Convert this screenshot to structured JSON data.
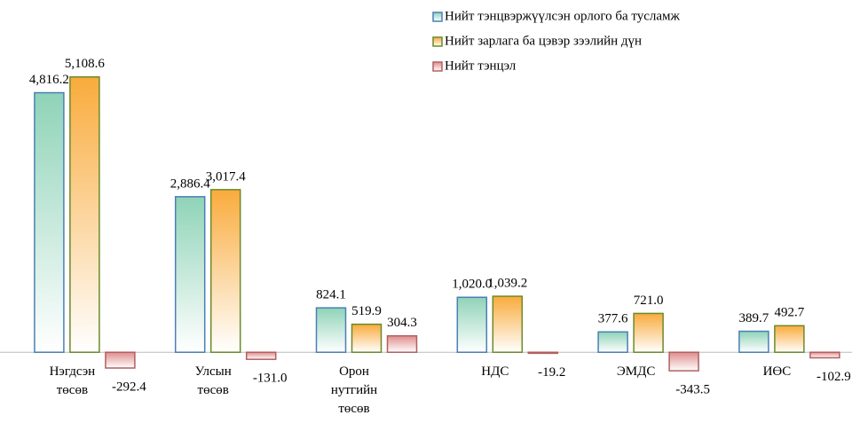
{
  "chart_data": {
    "type": "bar",
    "categories": [
      "Нэгдсэн төсөв",
      "Улсын төсөв",
      "Орон нутгийн төсөв",
      "НДС",
      "ЭМДС",
      "ИӨС"
    ],
    "series": [
      {
        "name": "Нийт тэнцвэржүүлсэн орлого ба тусламж",
        "color": "#8fd3b8",
        "border": "#4a7fb5",
        "values": [
          4816.2,
          2886.4,
          824.1,
          1020.0,
          377.6,
          389.7
        ],
        "value_labels": [
          "4,816.2",
          "2,886.4",
          "824.1",
          "1,020.0",
          "377.6",
          "389.7"
        ]
      },
      {
        "name": "Нийт зарлага ба цэвэр зээлийн дүн",
        "color": "#f9ab3c",
        "border": "#6a8a2a",
        "values": [
          5108.6,
          3017.4,
          519.9,
          1039.2,
          721.0,
          492.7
        ],
        "value_labels": [
          "5,108.6",
          "3,017.4",
          "519.9",
          "1,039.2",
          "721.0",
          "492.7"
        ]
      },
      {
        "name": "Нийт тэнцэл",
        "color": "#e08c8c",
        "border": "#b06060",
        "values": [
          -292.4,
          -131.0,
          304.3,
          -19.2,
          -343.5,
          -102.9
        ],
        "value_labels": [
          "-292.4",
          "-131.0",
          "304.3",
          "-19.2",
          "-343.5",
          "-102.9"
        ]
      }
    ],
    "ylim": [
      -1000,
      5500
    ],
    "legend": "top-right"
  }
}
